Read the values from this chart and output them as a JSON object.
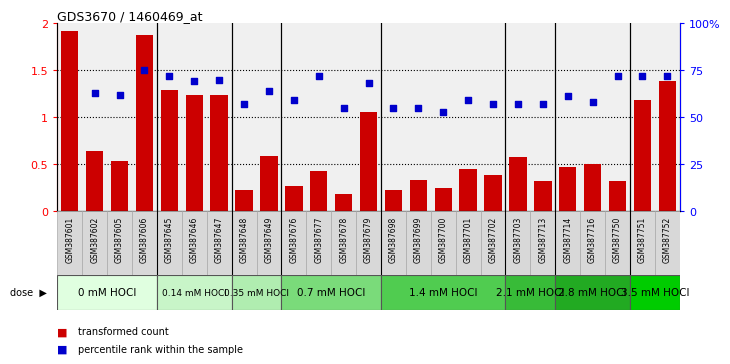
{
  "title": "GDS3670 / 1460469_at",
  "samples": [
    "GSM387601",
    "GSM387602",
    "GSM387605",
    "GSM387606",
    "GSM387645",
    "GSM387646",
    "GSM387647",
    "GSM387648",
    "GSM387649",
    "GSM387676",
    "GSM387677",
    "GSM387678",
    "GSM387679",
    "GSM387698",
    "GSM387699",
    "GSM387700",
    "GSM387701",
    "GSM387702",
    "GSM387703",
    "GSM387713",
    "GSM387714",
    "GSM387716",
    "GSM387750",
    "GSM387751",
    "GSM387752"
  ],
  "red_values": [
    1.92,
    0.64,
    0.53,
    1.88,
    1.29,
    1.24,
    1.24,
    0.22,
    0.59,
    0.27,
    0.43,
    0.18,
    1.05,
    0.22,
    0.33,
    0.24,
    0.45,
    0.38,
    0.57,
    0.32,
    0.47,
    0.5,
    0.32,
    1.18,
    1.39
  ],
  "blue_pct": [
    null,
    63,
    62,
    75,
    72,
    69,
    70,
    57,
    64,
    59,
    72,
    55,
    68,
    55,
    55,
    53,
    59,
    57,
    57,
    57,
    61,
    58,
    72,
    72,
    72
  ],
  "dose_groups": [
    {
      "label": "0 mM HOCl",
      "start": 0,
      "end": 4,
      "color": "#e0ffe0",
      "fontsize": 7.5
    },
    {
      "label": "0.14 mM HOCl",
      "start": 4,
      "end": 7,
      "color": "#c8f5c8",
      "fontsize": 6.5
    },
    {
      "label": "0.35 mM HOCl",
      "start": 7,
      "end": 9,
      "color": "#b0edb0",
      "fontsize": 6.5
    },
    {
      "label": "0.7 mM HOCl",
      "start": 9,
      "end": 13,
      "color": "#7adb7a",
      "fontsize": 7.5
    },
    {
      "label": "1.4 mM HOCl",
      "start": 13,
      "end": 18,
      "color": "#50cc50",
      "fontsize": 7.5
    },
    {
      "label": "2.1 mM HOCl",
      "start": 18,
      "end": 20,
      "color": "#38bb38",
      "fontsize": 7.5
    },
    {
      "label": "2.8 mM HOCl",
      "start": 20,
      "end": 23,
      "color": "#22aa22",
      "fontsize": 7.5
    },
    {
      "label": "3.5 mM HOCl",
      "start": 23,
      "end": 25,
      "color": "#00cc00",
      "fontsize": 7.5
    }
  ],
  "bar_color": "#cc0000",
  "scatter_color": "#0000cc",
  "ylim_left": [
    0,
    2.0
  ],
  "ylim_right": [
    0,
    100
  ],
  "yticks_left": [
    0,
    0.5,
    1.0,
    1.5,
    2.0
  ],
  "ytick_labels_left": [
    "0",
    "0.5",
    "1",
    "1.5",
    "2"
  ],
  "yticks_right": [
    0,
    25,
    50,
    75,
    100
  ],
  "ytick_labels_right": [
    "0",
    "25",
    "50",
    "75",
    "100%"
  ],
  "hlines": [
    0.5,
    1.0,
    1.5
  ],
  "plot_bg": "#f0f0f0",
  "label_bg": "#d8d8d8"
}
